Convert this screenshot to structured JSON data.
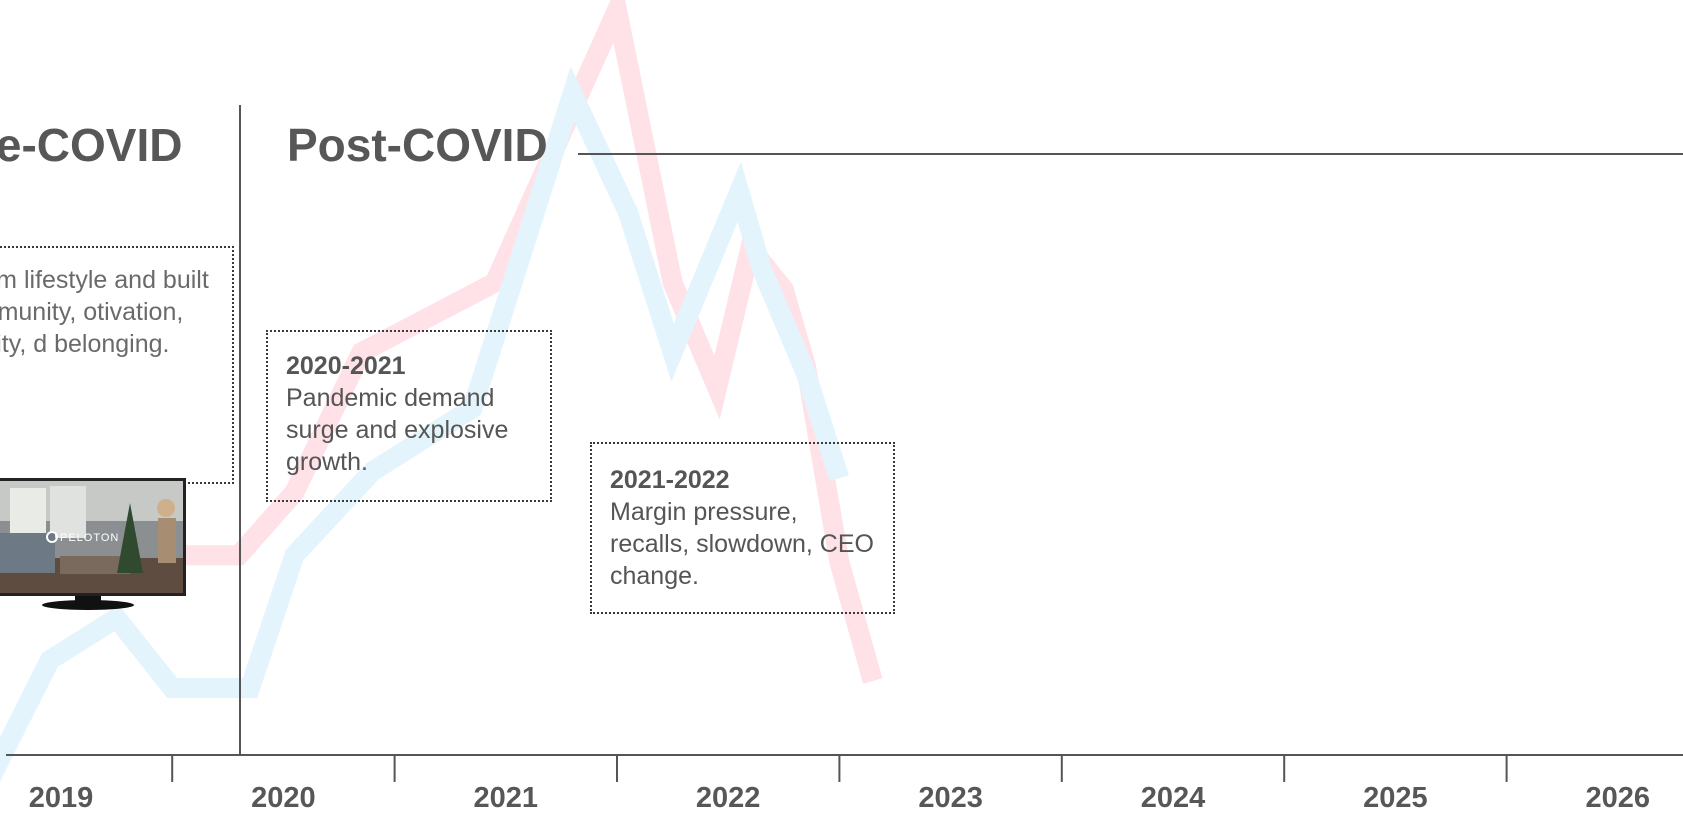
{
  "eras": {
    "pre": "re-COVID",
    "post": "Post-COVID"
  },
  "notes": {
    "pre": "emium lifestyle and built on mmunity, otivation, identity, d belonging.",
    "n2020": {
      "year": "2020-2021",
      "text": "Pandemic demand surge and explosive growth."
    },
    "n2021": {
      "year": "2021-2022",
      "text": "Margin pressure, recalls, slowdown, CEO change."
    }
  },
  "tv": {
    "brand": "PELOTON"
  },
  "colors": {
    "pink": "#ffe1e8",
    "blue": "#e3f4fc",
    "axis": "#555555",
    "text": "#575757"
  },
  "chart_data": {
    "type": "line",
    "xlabel": "",
    "ylabel": "",
    "x_ticks": [
      "2019",
      "2020",
      "2021",
      "2022",
      "2023",
      "2024",
      "2025",
      "2026"
    ],
    "xlim": [
      2019,
      2026.5
    ],
    "ylim": [
      0,
      100
    ],
    "grid": false,
    "annotations": [
      {
        "text": "re-COVID",
        "position": "before-2020"
      },
      {
        "text": "Post-COVID",
        "position": "after-2020"
      }
    ],
    "series": [
      {
        "color": "#ffe1e8",
        "x": [
          2019.45,
          2019.55,
          2019.8,
          2020.05,
          2020.35,
          2020.95,
          2021.5,
          2021.75,
          2021.95,
          2022.1,
          2022.25,
          2022.35,
          2022.5,
          2022.65
        ],
        "y": [
          24,
          22,
          22,
          31,
          51,
          61,
          100,
          61,
          46,
          66,
          60,
          49,
          21,
          4
        ]
      },
      {
        "color": "#e3f4fc",
        "x": [
          2018.65,
          2018.95,
          2019.25,
          2019.5,
          2019.85,
          2020.05,
          2020.4,
          2020.85,
          2021.3,
          2021.55,
          2021.75,
          2022.05,
          2022.15,
          2022.35,
          2022.5
        ],
        "y": [
          -12,
          7,
          13,
          3,
          3,
          22,
          34,
          43,
          88,
          71,
          51,
          74,
          63,
          48,
          33
        ]
      }
    ]
  }
}
